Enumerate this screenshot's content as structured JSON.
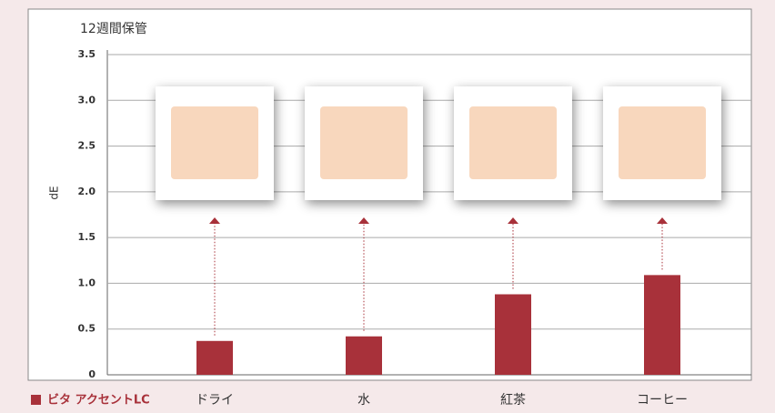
{
  "chart_data": {
    "type": "bar",
    "title": "12週間保管",
    "y_label": "dE",
    "categories": [
      "ドライ",
      "水",
      "紅茶",
      "コーヒー"
    ],
    "series": [
      {
        "name": "ビタ アクセントLC",
        "color": "#a8313a",
        "values": [
          0.37,
          0.42,
          0.88,
          1.09
        ]
      }
    ],
    "ylim": [
      0,
      3.5
    ],
    "yticks": [
      0,
      0.5,
      {
        "value": 1,
        "label": "1.0"
      },
      1.5,
      {
        "value": 2,
        "label": "2.0"
      },
      2.5,
      {
        "value": 3,
        "label": "3.0"
      },
      3.5
    ],
    "grid": true
  }
}
